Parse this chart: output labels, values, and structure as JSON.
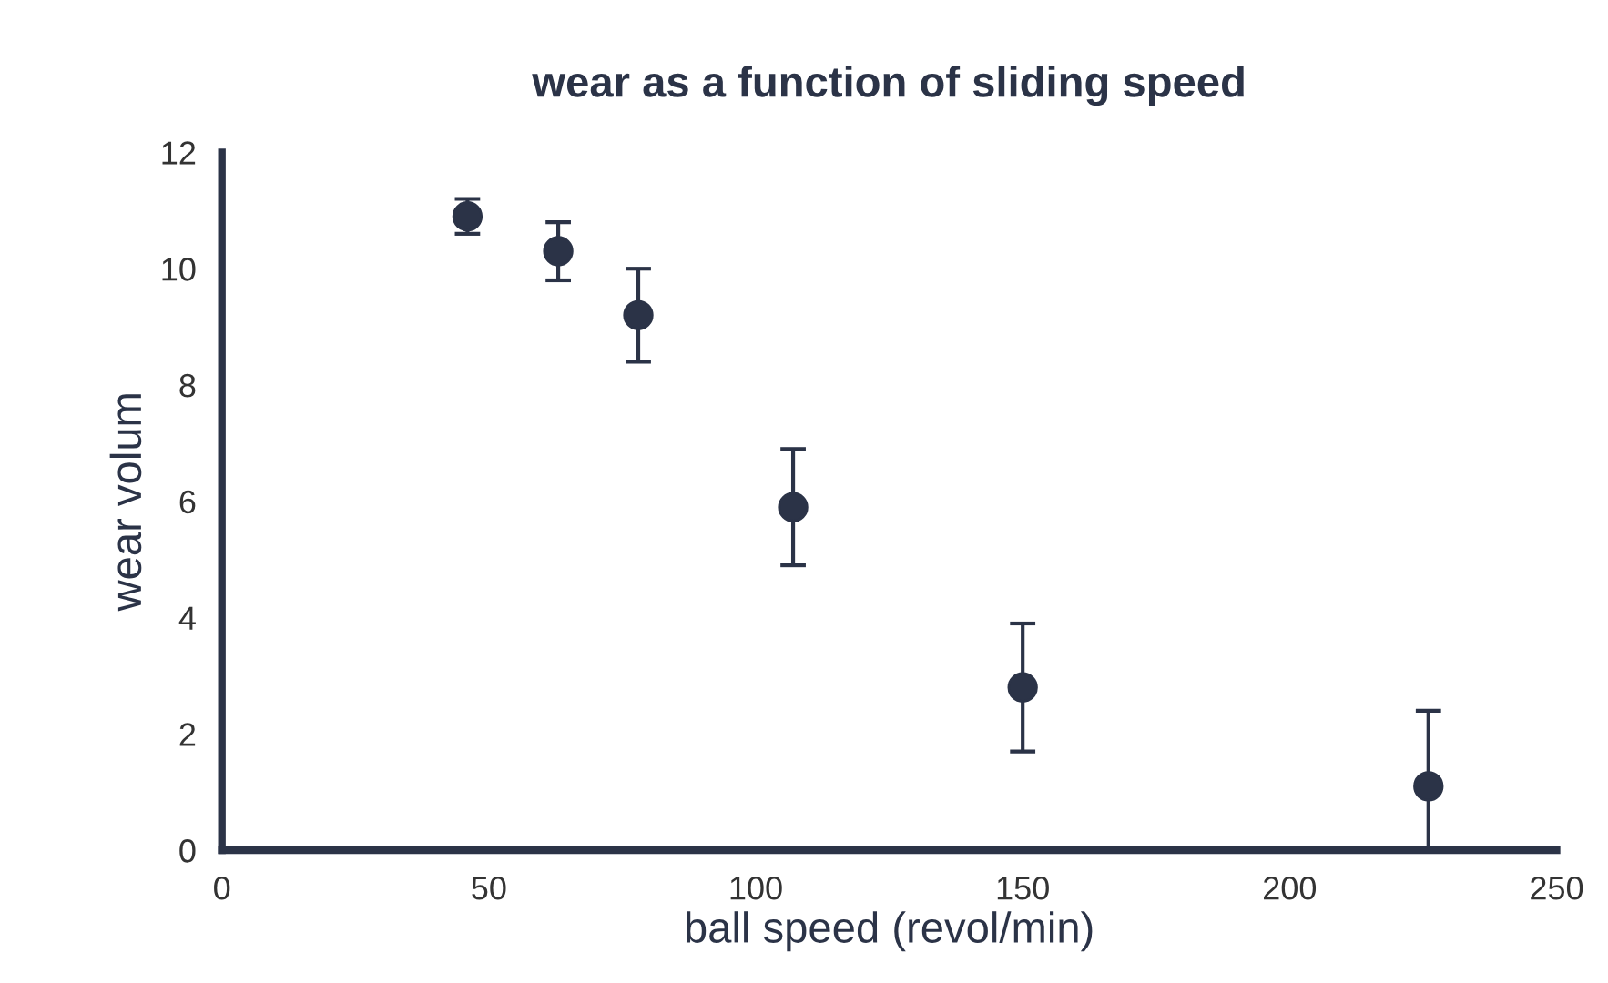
{
  "chart_data": {
    "type": "scatter",
    "title": "wear as a function of sliding speed",
    "xlabel": "ball speed (revol/min)",
    "ylabel": "wear volum",
    "x": [
      46,
      63,
      78,
      107,
      150,
      226
    ],
    "values": [
      10.9,
      10.3,
      9.2,
      5.9,
      2.8,
      1.1
    ],
    "errors": [
      0.3,
      0.5,
      0.8,
      1.0,
      1.1,
      1.3
    ],
    "color": "#2b3347",
    "marker": "circle",
    "xlim": [
      0,
      250
    ],
    "xticks": [
      0,
      50,
      100,
      150,
      200,
      250
    ],
    "ylim": [
      0,
      12
    ],
    "yticks": [
      0,
      2,
      4,
      6,
      8,
      10,
      12
    ],
    "grid": false
  }
}
